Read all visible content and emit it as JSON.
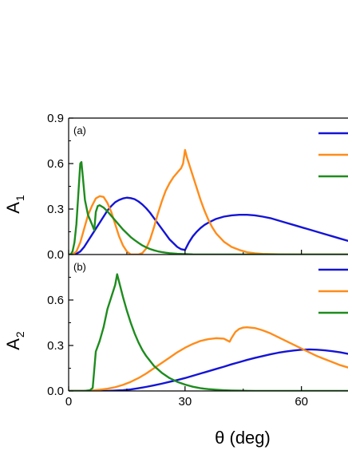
{
  "chart_data": [
    {
      "type": "line",
      "panel_label": "(a)",
      "ylabel": "A",
      "ylabel_sub": "1",
      "xlim": [
        0,
        72
      ],
      "ylim": [
        0,
        0.9
      ],
      "yticks": [
        "0.0",
        "0.3",
        "0.6",
        "0.9"
      ],
      "legend_position": "top-right",
      "series": [
        {
          "color": "#1414d6",
          "x": [
            0,
            1,
            2,
            3,
            4,
            5,
            6,
            7,
            8,
            9,
            10,
            11,
            12,
            13,
            14,
            15,
            16,
            17,
            18,
            19,
            20,
            21,
            22,
            23,
            24,
            25,
            26,
            27,
            28,
            29,
            30,
            31,
            32,
            33,
            34,
            35,
            36,
            38,
            40,
            42,
            44,
            46,
            48,
            50,
            52,
            54,
            56,
            58,
            60,
            62,
            64,
            66,
            68,
            70,
            72
          ],
          "y": [
            0.0,
            0.0,
            0.005,
            0.02,
            0.05,
            0.09,
            0.13,
            0.17,
            0.21,
            0.25,
            0.29,
            0.32,
            0.345,
            0.36,
            0.37,
            0.375,
            0.372,
            0.365,
            0.35,
            0.33,
            0.305,
            0.275,
            0.24,
            0.205,
            0.17,
            0.135,
            0.1,
            0.075,
            0.05,
            0.035,
            0.03,
            0.08,
            0.12,
            0.15,
            0.175,
            0.195,
            0.21,
            0.235,
            0.25,
            0.258,
            0.262,
            0.262,
            0.258,
            0.25,
            0.24,
            0.225,
            0.21,
            0.195,
            0.18,
            0.165,
            0.15,
            0.135,
            0.12,
            0.105,
            0.09
          ]
        },
        {
          "color": "#ff8c1a",
          "x": [
            0,
            1,
            2,
            3,
            4,
            5,
            6,
            7,
            8,
            9,
            10,
            11,
            12,
            13,
            14,
            15,
            16,
            17,
            18,
            19,
            20,
            21,
            22,
            23,
            24,
            25,
            26,
            27,
            28,
            29,
            29.5,
            30,
            30.5,
            31,
            32,
            33,
            34,
            35,
            36,
            37,
            38,
            40,
            42,
            44,
            46,
            48,
            50,
            55,
            60,
            65,
            70,
            72
          ],
          "y": [
            0.0,
            0.0,
            0.02,
            0.08,
            0.17,
            0.26,
            0.32,
            0.37,
            0.385,
            0.38,
            0.34,
            0.28,
            0.2,
            0.12,
            0.06,
            0.02,
            0.0,
            0.0,
            0.0,
            0.01,
            0.04,
            0.1,
            0.18,
            0.27,
            0.35,
            0.42,
            0.47,
            0.51,
            0.54,
            0.57,
            0.6,
            0.69,
            0.64,
            0.6,
            0.52,
            0.44,
            0.36,
            0.29,
            0.23,
            0.18,
            0.14,
            0.085,
            0.05,
            0.03,
            0.015,
            0.008,
            0.004,
            0.001,
            0.0,
            0.0,
            0.0,
            0.0
          ]
        },
        {
          "color": "#1e8c1e",
          "x": [
            0,
            0.5,
            1,
            1.5,
            2,
            2.5,
            3,
            3.3,
            3.7,
            4.2,
            5,
            6,
            6.6,
            7,
            7.5,
            8,
            9,
            10,
            11,
            12,
            13,
            14,
            15,
            16,
            17,
            18,
            19,
            20,
            21,
            22,
            23,
            24,
            25,
            26,
            28,
            30,
            32,
            35,
            40,
            72
          ],
          "y": [
            0.0,
            0.0,
            0.02,
            0.08,
            0.2,
            0.4,
            0.6,
            0.61,
            0.5,
            0.36,
            0.26,
            0.2,
            0.16,
            0.28,
            0.32,
            0.325,
            0.31,
            0.285,
            0.255,
            0.225,
            0.195,
            0.165,
            0.14,
            0.115,
            0.095,
            0.077,
            0.06,
            0.047,
            0.036,
            0.028,
            0.021,
            0.016,
            0.012,
            0.009,
            0.005,
            0.003,
            0.001,
            0.0,
            0.0,
            0.0
          ]
        }
      ]
    },
    {
      "type": "line",
      "panel_label": "(b)",
      "ylabel": "A",
      "ylabel_sub": "2",
      "xlabel": "θ (deg)",
      "xlim": [
        0,
        72
      ],
      "ylim": [
        0,
        0.9
      ],
      "xticks": [
        "0",
        "30",
        "60"
      ],
      "yticks": [
        "0.0",
        "0.3",
        "0.6"
      ],
      "legend_position": "top-right",
      "series": [
        {
          "color": "#1414d6",
          "x": [
            0,
            10,
            14,
            16,
            18,
            20,
            22,
            24,
            26,
            28,
            30,
            32,
            34,
            36,
            38,
            40,
            42,
            44,
            46,
            48,
            50,
            52,
            54,
            56,
            58,
            60,
            62,
            64,
            66,
            68,
            70,
            72
          ],
          "y": [
            0.0,
            0.0,
            0.005,
            0.01,
            0.018,
            0.027,
            0.037,
            0.048,
            0.06,
            0.072,
            0.085,
            0.1,
            0.115,
            0.13,
            0.145,
            0.16,
            0.176,
            0.19,
            0.205,
            0.218,
            0.23,
            0.242,
            0.252,
            0.26,
            0.267,
            0.272,
            0.274,
            0.272,
            0.268,
            0.262,
            0.255,
            0.245
          ]
        },
        {
          "color": "#ff8c1a",
          "x": [
            0,
            4,
            6,
            8,
            10,
            12,
            14,
            16,
            18,
            20,
            22,
            24,
            26,
            28,
            30,
            32,
            34,
            36,
            38,
            40,
            41.5,
            42,
            43,
            44,
            45,
            46,
            48,
            50,
            52,
            54,
            56,
            58,
            60,
            62,
            64,
            66,
            68,
            70,
            72
          ],
          "y": [
            0.0,
            0.0,
            0.003,
            0.008,
            0.015,
            0.025,
            0.04,
            0.06,
            0.085,
            0.115,
            0.15,
            0.185,
            0.22,
            0.255,
            0.285,
            0.31,
            0.33,
            0.342,
            0.348,
            0.345,
            0.325,
            0.35,
            0.39,
            0.41,
            0.418,
            0.42,
            0.415,
            0.4,
            0.38,
            0.355,
            0.33,
            0.305,
            0.28,
            0.255,
            0.23,
            0.21,
            0.19,
            0.17,
            0.155
          ]
        },
        {
          "color": "#1e8c1e",
          "x": [
            0,
            4,
            5.5,
            6.2,
            7,
            8,
            9,
            10,
            11,
            12,
            12.5,
            13,
            14,
            15,
            16,
            17,
            18,
            19,
            20,
            22,
            24,
            26,
            28,
            30,
            32,
            34,
            36,
            38,
            40,
            42,
            44,
            46,
            48,
            50,
            55,
            60,
            72
          ],
          "y": [
            0.0,
            0.0,
            0.005,
            0.02,
            0.26,
            0.33,
            0.42,
            0.54,
            0.62,
            0.7,
            0.77,
            0.72,
            0.62,
            0.53,
            0.45,
            0.38,
            0.32,
            0.27,
            0.23,
            0.165,
            0.12,
            0.085,
            0.06,
            0.042,
            0.028,
            0.018,
            0.012,
            0.008,
            0.005,
            0.003,
            0.002,
            0.001,
            0.0,
            0.0,
            0.0,
            0.0,
            0.0
          ]
        }
      ]
    }
  ]
}
